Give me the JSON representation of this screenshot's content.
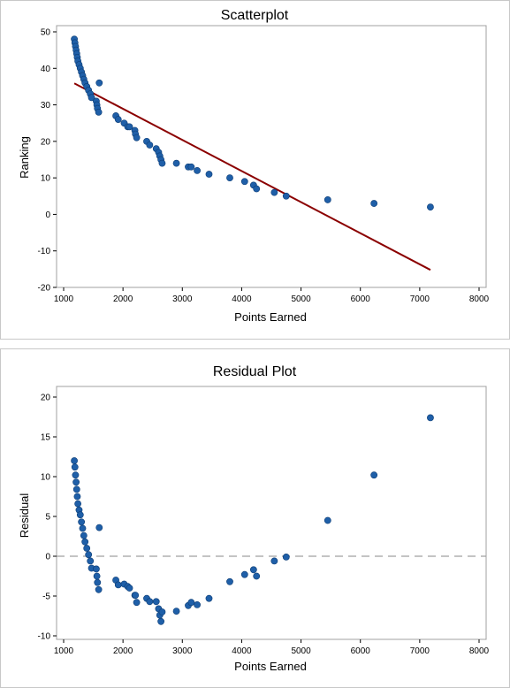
{
  "chart_data": [
    {
      "type": "scatter",
      "title": "Scatterplot",
      "xlabel": "Points Earned",
      "ylabel": "Ranking",
      "xlim": [
        1000,
        8000
      ],
      "ylim": [
        -20,
        50
      ],
      "xticks": [
        1000,
        2000,
        3000,
        4000,
        5000,
        6000,
        7000,
        8000
      ],
      "yticks": [
        -20,
        -10,
        0,
        10,
        20,
        30,
        40,
        50
      ],
      "marker_color": "#1f5fa8",
      "line_color": "#8b0000",
      "fit_line": {
        "x": [
          1180,
          7180
        ],
        "y": [
          35.9,
          -15.2
        ]
      },
      "x": [
        1180,
        1190,
        1200,
        1210,
        1220,
        1230,
        1240,
        1260,
        1280,
        1300,
        1320,
        1340,
        1360,
        1390,
        1420,
        1450,
        1470,
        1550,
        1560,
        1570,
        1590,
        1600,
        1880,
        1920,
        2020,
        2080,
        2110,
        2200,
        2210,
        2230,
        2400,
        2450,
        2560,
        2600,
        2620,
        2640,
        2660,
        2900,
        3100,
        3150,
        3250,
        3450,
        3800,
        4050,
        4200,
        4250,
        4550,
        4750,
        5450,
        6230,
        7180
      ],
      "y": [
        48,
        47,
        46,
        45,
        44,
        43,
        42,
        41,
        40,
        39,
        38,
        37,
        36,
        35,
        34,
        33,
        32,
        31,
        30,
        29,
        28,
        36,
        27,
        26,
        25,
        24,
        24,
        23,
        22,
        21,
        20,
        19,
        18,
        17,
        16,
        15,
        14,
        14,
        13,
        13,
        12,
        11,
        10,
        9,
        8,
        7,
        6,
        5,
        4,
        3,
        2
      ]
    },
    {
      "type": "scatter",
      "title": "Residual Plot",
      "xlabel": "Points Earned",
      "ylabel": "Residual",
      "xlim": [
        1000,
        8000
      ],
      "ylim": [
        -10,
        20
      ],
      "xticks": [
        1000,
        2000,
        3000,
        4000,
        5000,
        6000,
        7000,
        8000
      ],
      "yticks": [
        -10,
        -5,
        0,
        5,
        10,
        15,
        20
      ],
      "marker_color": "#1f5fa8",
      "reference_line": {
        "y": 0,
        "style": "dashed",
        "color": "#a0a0a0"
      },
      "x": [
        1180,
        1190,
        1200,
        1210,
        1220,
        1230,
        1240,
        1260,
        1280,
        1300,
        1320,
        1340,
        1360,
        1390,
        1420,
        1450,
        1470,
        1550,
        1560,
        1570,
        1590,
        1600,
        1880,
        1920,
        2020,
        2080,
        2110,
        2200,
        2210,
        2230,
        2400,
        2450,
        2560,
        2600,
        2620,
        2640,
        2660,
        2900,
        3100,
        3150,
        3250,
        3450,
        3800,
        4050,
        4200,
        4250,
        4550,
        4750,
        5450,
        6230,
        7180
      ],
      "y": [
        12.0,
        11.2,
        10.2,
        9.3,
        8.4,
        7.5,
        6.6,
        5.8,
        5.2,
        4.3,
        3.5,
        2.6,
        1.8,
        1.0,
        0.2,
        -0.6,
        -1.5,
        -1.6,
        -2.5,
        -3.3,
        -4.2,
        3.6,
        -3.0,
        -3.6,
        -3.5,
        -3.8,
        -4.0,
        -4.9,
        -4.9,
        -5.8,
        -5.3,
        -5.7,
        -5.7,
        -6.6,
        -7.4,
        -8.2,
        -7.0,
        -6.9,
        -6.2,
        -5.8,
        -6.1,
        -5.3,
        -3.2,
        -2.3,
        -1.7,
        -2.5,
        -0.6,
        -0.1,
        4.5,
        10.2,
        17.4
      ]
    }
  ]
}
